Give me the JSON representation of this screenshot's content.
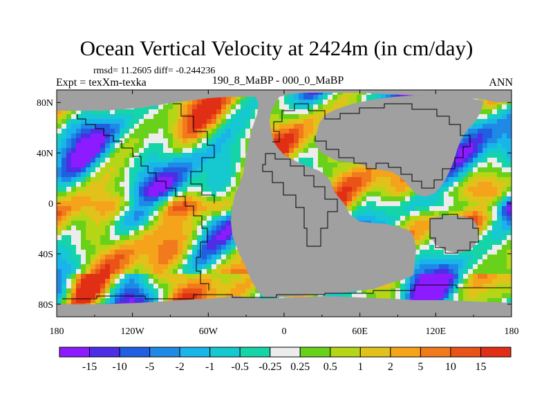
{
  "title": "Ocean Vertical Velocity at 2424m (in cm/day)",
  "stats_text": "rmsd= 11.2605  diff= -0.244236",
  "experiment_text": "Expt = texXm-texka",
  "comparison_text": "190_8_MaBP - 000_0_MaBP",
  "season": "ANN",
  "chart_data": {
    "type": "heatmap",
    "title": "Ocean Vertical Velocity at 2424m (in cm/day)",
    "x_axis": {
      "range": [
        -180,
        180
      ],
      "ticks": [
        -180,
        -120,
        -60,
        0,
        60,
        120,
        180
      ],
      "tick_labels": [
        "180",
        "120W",
        "60W",
        "0",
        "60E",
        "120E",
        "180"
      ]
    },
    "y_axis": {
      "range": [
        -90,
        90
      ],
      "ticks": [
        80,
        40,
        0,
        -40,
        -80
      ],
      "tick_labels": [
        "80N",
        "40N",
        "0",
        "40S",
        "80S"
      ]
    },
    "colorbar": {
      "levels": [
        "-15",
        "-10",
        "-5",
        "-2",
        "-1",
        "-0.5",
        "-0.25",
        "0.25",
        "0.5",
        "1",
        "2",
        "5",
        "10",
        "15"
      ],
      "colors": [
        "#8c1cff",
        "#4d2ee6",
        "#1f5fe0",
        "#1f8ae6",
        "#19b5ea",
        "#16c8cf",
        "#14d4a8",
        "#ececec",
        "#6ad11a",
        "#b5d616",
        "#e2c21a",
        "#f5a31a",
        "#f07a1c",
        "#ea5318",
        "#e02f14"
      ]
    },
    "land_color": "#a0a0a0",
    "grid": false
  }
}
